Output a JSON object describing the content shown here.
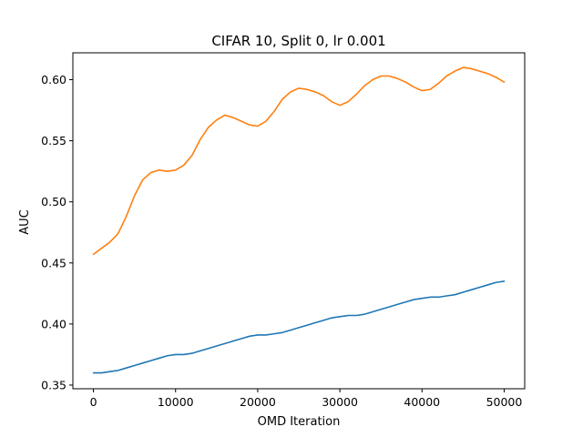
{
  "chart_data": {
    "type": "line",
    "title": "CIFAR 10, Split 0, lr 0.001",
    "xlabel": "OMD Iteration",
    "ylabel": "AUC",
    "xlim": [
      -2500,
      52500
    ],
    "ylim": [
      0.347,
      0.622
    ],
    "xticks": [
      0,
      10000,
      20000,
      30000,
      40000,
      50000
    ],
    "yticks": [
      0.35,
      0.4,
      0.45,
      0.5,
      0.55,
      0.6
    ],
    "ytick_labels": [
      "0.35",
      "0.40",
      "0.45",
      "0.50",
      "0.55",
      "0.60"
    ],
    "grid": false,
    "legend": "none",
    "series": [
      {
        "color": "#1f77b4",
        "x": [
          0,
          1000,
          2000,
          3000,
          4000,
          5000,
          6000,
          7000,
          8000,
          9000,
          10000,
          11000,
          12000,
          13000,
          14000,
          15000,
          16000,
          17000,
          18000,
          19000,
          20000,
          21000,
          22000,
          23000,
          24000,
          25000,
          26000,
          27000,
          28000,
          29000,
          30000,
          31000,
          32000,
          33000,
          34000,
          35000,
          36000,
          37000,
          38000,
          39000,
          40000,
          41000,
          42000,
          43000,
          44000,
          45000,
          46000,
          47000,
          48000,
          49000,
          50000
        ],
        "y": [
          0.36,
          0.36,
          0.361,
          0.362,
          0.364,
          0.366,
          0.368,
          0.37,
          0.372,
          0.374,
          0.375,
          0.375,
          0.376,
          0.378,
          0.38,
          0.382,
          0.384,
          0.386,
          0.388,
          0.39,
          0.391,
          0.391,
          0.392,
          0.393,
          0.395,
          0.397,
          0.399,
          0.401,
          0.403,
          0.405,
          0.406,
          0.407,
          0.407,
          0.408,
          0.41,
          0.412,
          0.414,
          0.416,
          0.418,
          0.42,
          0.421,
          0.422,
          0.422,
          0.423,
          0.424,
          0.426,
          0.428,
          0.43,
          0.432,
          0.434,
          0.435
        ]
      },
      {
        "color": "#ff7f0e",
        "x": [
          0,
          1000,
          2000,
          3000,
          4000,
          5000,
          6000,
          7000,
          8000,
          9000,
          10000,
          11000,
          12000,
          13000,
          14000,
          15000,
          16000,
          17000,
          18000,
          19000,
          20000,
          21000,
          22000,
          23000,
          24000,
          25000,
          26000,
          27000,
          28000,
          29000,
          30000,
          31000,
          32000,
          33000,
          34000,
          35000,
          36000,
          37000,
          38000,
          39000,
          40000,
          41000,
          42000,
          43000,
          44000,
          45000,
          46000,
          47000,
          48000,
          49000,
          50000
        ],
        "y": [
          0.457,
          0.462,
          0.467,
          0.474,
          0.488,
          0.505,
          0.518,
          0.524,
          0.526,
          0.525,
          0.526,
          0.53,
          0.538,
          0.551,
          0.561,
          0.567,
          0.571,
          0.569,
          0.566,
          0.563,
          0.562,
          0.566,
          0.574,
          0.584,
          0.59,
          0.593,
          0.592,
          0.59,
          0.587,
          0.582,
          0.579,
          0.582,
          0.588,
          0.595,
          0.6,
          0.603,
          0.603,
          0.601,
          0.598,
          0.594,
          0.591,
          0.592,
          0.597,
          0.603,
          0.607,
          0.61,
          0.609,
          0.607,
          0.605,
          0.602,
          0.598
        ]
      }
    ]
  }
}
